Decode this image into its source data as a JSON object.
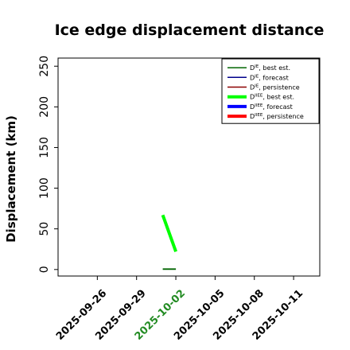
{
  "chart_data": {
    "type": "line",
    "title": "Ice edge displacement distance",
    "xlabel": "",
    "ylabel": "Displacement (km)",
    "x_ticks": [
      "2025-09-26",
      "2025-09-29",
      "2025-10-02",
      "2025-10-05",
      "2025-10-08",
      "2025-10-11"
    ],
    "highlighted_tick": "2025-10-02",
    "highlight_color": "#228b22",
    "xlim": [
      "2025-09-23",
      "2025-10-13"
    ],
    "ylim": [
      -8,
      260
    ],
    "y_ticks": [
      0,
      50,
      100,
      150,
      200,
      250
    ],
    "grid": false,
    "legend_position": "top-right",
    "legend": [
      {
        "label": "D^IE, best est.",
        "main": "D",
        "sup": "IE",
        "rest": ", best est.",
        "color": "#006400",
        "weight": "thin"
      },
      {
        "label": "D^IE, forecast",
        "main": "D",
        "sup": "IE",
        "rest": ", forecast",
        "color": "#00008b",
        "weight": "thin"
      },
      {
        "label": "D^IE, persistence",
        "main": "D",
        "sup": "IE",
        "rest": ", persistence",
        "color": "#8b0000",
        "weight": "thin"
      },
      {
        "label": "D^IIEE, best est.",
        "main": "D",
        "sup": "IIEE",
        "rest": ", best est.",
        "color": "#00ff00",
        "weight": "thick"
      },
      {
        "label": "D^IIEE, forecast",
        "main": "D",
        "sup": "IIEE",
        "rest": ", forecast",
        "color": "#0000ff",
        "weight": "thick"
      },
      {
        "label": "D^IIEE, persistence",
        "main": "D",
        "sup": "IIEE",
        "rest": ", persistence",
        "color": "#ff0000",
        "weight": "thick"
      }
    ],
    "series": [
      {
        "name": "D^IE, best est.",
        "color": "#006400",
        "weight": "thin",
        "x": [
          "2025-10-01",
          "2025-10-02"
        ],
        "y": [
          0.5,
          0.5
        ]
      },
      {
        "name": "D^IIEE, best est.",
        "color": "#00ff00",
        "weight": "thick",
        "x": [
          "2025-10-01",
          "2025-10-02"
        ],
        "y": [
          67,
          22
        ]
      }
    ]
  }
}
